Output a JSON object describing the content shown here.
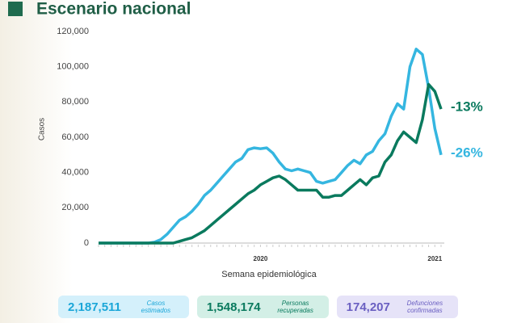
{
  "chart_data": {
    "type": "line",
    "title": "Escenario nacional",
    "ylabel": "Casos",
    "xlabel": "Semana epidemiológica",
    "categories": [
      null,
      null,
      null,
      null,
      null,
      null,
      null,
      null,
      null,
      null,
      null,
      null,
      null,
      null,
      null,
      null,
      null,
      null,
      null,
      null,
      null,
      null,
      null,
      null,
      null,
      null,
      "2020",
      null,
      null,
      null,
      null,
      null,
      null,
      null,
      null,
      null,
      null,
      null,
      null,
      null,
      null,
      null,
      null,
      null,
      null,
      null,
      null,
      null,
      null,
      null,
      null,
      null,
      null,
      null,
      "2021",
      null
    ],
    "series": [
      {
        "name": "Casos estimados",
        "color": "#35b6e0",
        "values": [
          0,
          0,
          0,
          0,
          0,
          0,
          0,
          0,
          0,
          500,
          2000,
          5000,
          9000,
          13000,
          15000,
          18000,
          22000,
          27000,
          30000,
          34000,
          38000,
          42000,
          46000,
          48000,
          53000,
          54000,
          53500,
          54000,
          51000,
          46000,
          42000,
          41000,
          42000,
          41000,
          40000,
          35000,
          34000,
          35000,
          36000,
          40000,
          44000,
          47000,
          45000,
          50000,
          52000,
          58000,
          62000,
          72000,
          79000,
          76000,
          100000,
          110000,
          107000,
          88000,
          65000,
          50000
        ]
      },
      {
        "name": "Personas recuperadas",
        "color": "#0a7a5e",
        "values": [
          0,
          0,
          0,
          0,
          0,
          0,
          0,
          0,
          0,
          0,
          0,
          0,
          0,
          1000,
          2000,
          3000,
          5000,
          7000,
          10000,
          13000,
          16000,
          19000,
          22000,
          25000,
          28000,
          30000,
          33000,
          35000,
          37000,
          38000,
          36000,
          33000,
          30000,
          30000,
          30000,
          30000,
          26000,
          26000,
          27000,
          27000,
          30000,
          33000,
          36000,
          33000,
          37000,
          38000,
          46000,
          50000,
          58000,
          63000,
          60000,
          57000,
          70000,
          90000,
          86000,
          76000
        ]
      }
    ],
    "annotations": [
      {
        "text": "-13%",
        "series": 1
      },
      {
        "text": "-26%",
        "series": 0
      }
    ],
    "ylim": [
      0,
      120000
    ],
    "yticks": [
      0,
      {
        "value": 20000,
        "label": "20,000"
      },
      {
        "value": 40000,
        "label": "40,000"
      },
      {
        "value": 60000,
        "label": "60,000"
      },
      {
        "value": 80000,
        "label": "80,000"
      },
      {
        "value": 100000,
        "label": "100,000"
      },
      {
        "value": 120000,
        "label": "120,000"
      }
    ],
    "grid": false
  },
  "stats": [
    {
      "value": "2,187,511",
      "label": "Casos estimados",
      "color": "#1aa6d8",
      "bg": "#d4f0fb"
    },
    {
      "value": "1,548,174",
      "label": "Personas recuperadas",
      "color": "#0a7a5e",
      "bg": "#d3efe6"
    },
    {
      "value": "174,207",
      "label": "Defunciones confirmadas",
      "color": "#6a5fc1",
      "bg": "#e6e3f8"
    }
  ]
}
